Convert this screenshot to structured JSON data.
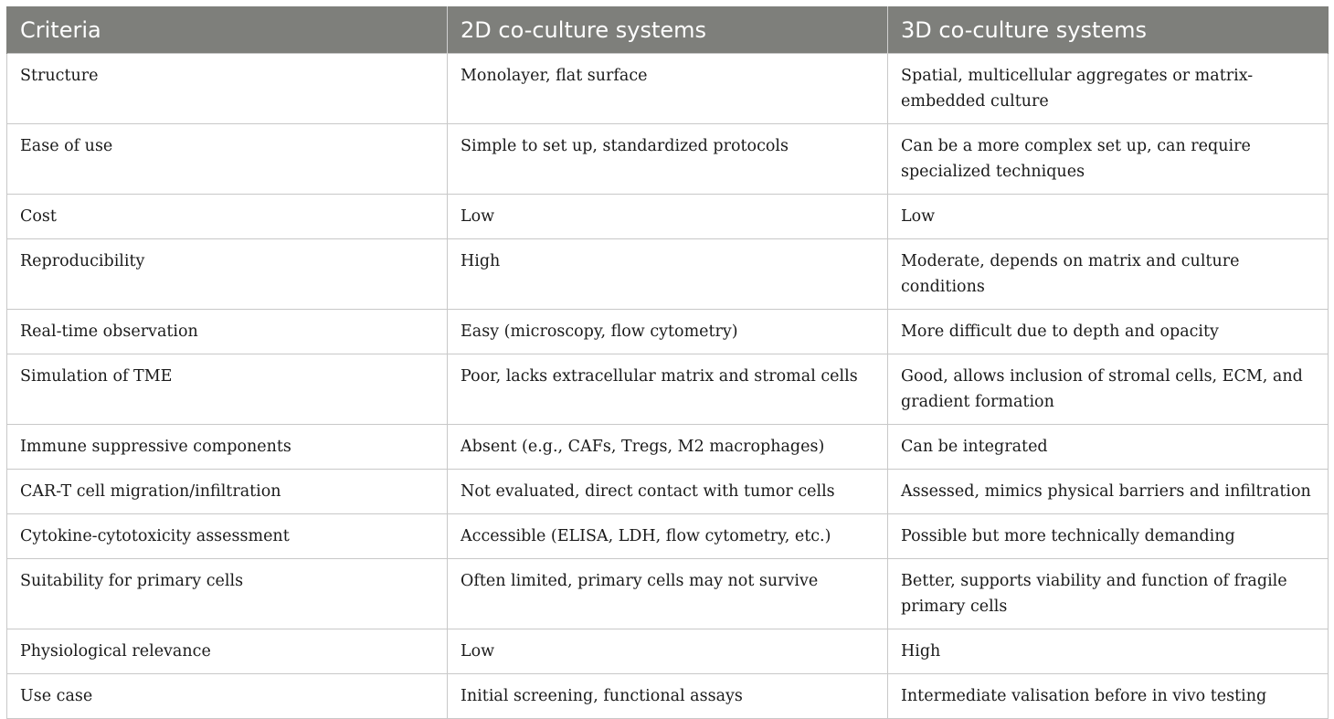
{
  "table": {
    "headers": [
      "Criteria",
      "2D co-culture systems",
      "3D co-culture systems"
    ],
    "rows": [
      {
        "lines": 2,
        "cells": [
          "Structure",
          "Monolayer, flat surface",
          "Spatial, multicellular aggregates or matrix-embedded culture"
        ]
      },
      {
        "lines": 2,
        "cells": [
          "Ease of use",
          "Simple to set up, standardized protocols",
          "Can be a more complex set up, can require specialized techniques"
        ]
      },
      {
        "lines": 1,
        "cells": [
          "Cost",
          "Low",
          "Low"
        ]
      },
      {
        "lines": 1,
        "cells": [
          "Reproducibility",
          "High",
          "Moderate, depends on matrix and culture conditions"
        ]
      },
      {
        "lines": 1,
        "cells": [
          "Real-time observation",
          "Easy (microscopy, flow cytometry)",
          "More difficult due to depth and opacity"
        ]
      },
      {
        "lines": 2,
        "cells": [
          "Simulation of TME",
          "Poor, lacks extracellular matrix and stromal cells",
          "Good, allows inclusion of stromal cells, ECM, and gradient formation"
        ]
      },
      {
        "lines": 1,
        "cells": [
          "Immune suppressive components",
          "Absent (e.g., CAFs, Tregs, M2 macrophages)",
          "Can be integrated"
        ]
      },
      {
        "lines": 1,
        "cells": [
          "CAR-T cell migration/infiltration",
          "Not evaluated, direct contact with tumor cells",
          "Assessed, mimics physical barriers and infiltration"
        ]
      },
      {
        "lines": 1,
        "cells": [
          "Cytokine-cytotoxicity assessment",
          "Accessible (ELISA, LDH, flow cytometry, etc.)",
          "Possible but more technically demanding"
        ]
      },
      {
        "lines": 2,
        "cells": [
          "Suitability for primary cells",
          "Often limited, primary cells may not survive",
          "Better, supports viability and function of fragile primary cells"
        ]
      },
      {
        "lines": 1,
        "cells": [
          "Physiological relevance",
          "Low",
          "High"
        ]
      },
      {
        "lines": 1,
        "cells": [
          "Use case",
          "Initial screening, functional assays",
          "Intermediate valisation before in vivo testing"
        ]
      }
    ]
  }
}
